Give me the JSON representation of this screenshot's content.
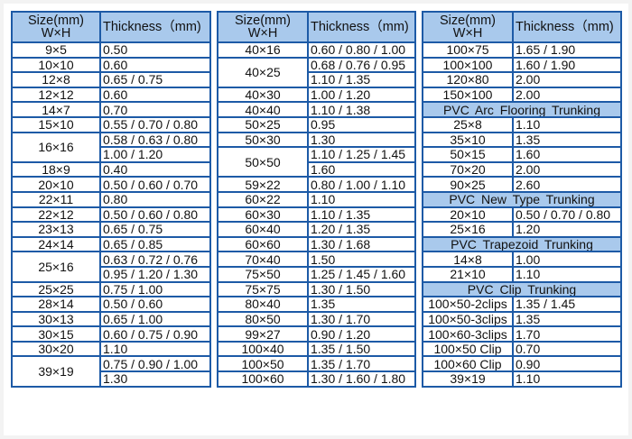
{
  "colors": {
    "border": "#1d5aa6",
    "header_bg": "#a9c9ec"
  },
  "header": {
    "size_line1": "Size(mm)",
    "size_line2": "W×H",
    "thickness": "Thickness（mm)"
  },
  "tables": [
    {
      "blocks": [
        {
          "rows": [
            {
              "size": "9×5",
              "thickness": [
                "0.50"
              ]
            },
            {
              "size": "10×10",
              "thickness": [
                "0.60"
              ]
            },
            {
              "size": "12×8",
              "thickness": [
                "0.65 / 0.75"
              ]
            },
            {
              "size": "12×12",
              "thickness": [
                "0.60"
              ]
            },
            {
              "size": "14×7",
              "thickness": [
                "0.70"
              ]
            },
            {
              "size": "15×10",
              "thickness": [
                "0.55 / 0.70 / 0.80"
              ]
            },
            {
              "size": "16×16",
              "thickness": [
                "0.58 / 0.63 / 0.80",
                "1.00 / 1.20"
              ]
            },
            {
              "size": "18×9",
              "thickness": [
                "0.40"
              ]
            },
            {
              "size": "20×10",
              "thickness": [
                "0.50 / 0.60 / 0.70"
              ]
            },
            {
              "size": "22×11",
              "thickness": [
                "0.80"
              ]
            },
            {
              "size": "22×12",
              "thickness": [
                "0.50 / 0.60 / 0.80"
              ]
            },
            {
              "size": "23×13",
              "thickness": [
                "0.65 / 0.75"
              ]
            },
            {
              "size": "24×14",
              "thickness": [
                "0.65 / 0.85"
              ]
            },
            {
              "size": "25×16",
              "thickness": [
                "0.63 / 0.72 / 0.76",
                "0.95 / 1.20 / 1.30"
              ]
            },
            {
              "size": "25×25",
              "thickness": [
                "0.75 / 1.00"
              ]
            },
            {
              "size": "28×14",
              "thickness": [
                "0.50 / 0.60"
              ]
            },
            {
              "size": "30×13",
              "thickness": [
                "0.65 / 1.00"
              ]
            },
            {
              "size": "30×15",
              "thickness": [
                "0.60 / 0.75 / 0.90"
              ]
            },
            {
              "size": "30×20",
              "thickness": [
                "1.10"
              ]
            },
            {
              "size": "39×19",
              "thickness": [
                "0.75 / 0.90 / 1.00",
                "1.30"
              ]
            }
          ]
        }
      ]
    },
    {
      "blocks": [
        {
          "rows": [
            {
              "size": "40×16",
              "thickness": [
                "0.60 / 0.80 / 1.00"
              ]
            },
            {
              "size": "40×25",
              "thickness": [
                "0.68 / 0.76 / 0.95",
                "1.10 / 1.35"
              ]
            },
            {
              "size": "40×30",
              "thickness": [
                "1.00 / 1.20"
              ]
            },
            {
              "size": "40×40",
              "thickness": [
                "1.10 / 1.38"
              ]
            },
            {
              "size": "50×25",
              "thickness": [
                "0.95"
              ]
            },
            {
              "size": "50×30",
              "thickness": [
                "1.30"
              ]
            },
            {
              "size": "50×50",
              "thickness": [
                "1.10 / 1.25 / 1.45",
                "1.60"
              ]
            },
            {
              "size": "59×22",
              "thickness": [
                "0.80 / 1.00 / 1.10"
              ]
            },
            {
              "size": "60×22",
              "thickness": [
                "1.10"
              ]
            },
            {
              "size": "60×30",
              "thickness": [
                "1.10 / 1.35"
              ]
            },
            {
              "size": "60×40",
              "thickness": [
                "1.20 / 1.35"
              ]
            },
            {
              "size": "60×60",
              "thickness": [
                "1.30 / 1.68"
              ]
            },
            {
              "size": "70×40",
              "thickness": [
                "1.50"
              ]
            },
            {
              "size": "75×50",
              "thickness": [
                "1.25 / 1.45 / 1.60"
              ]
            },
            {
              "size": "75×75",
              "thickness": [
                "1.30 / 1.50"
              ]
            },
            {
              "size": "80×40",
              "thickness": [
                "1.35"
              ]
            },
            {
              "size": "80×50",
              "thickness": [
                "1.30 / 1.70"
              ]
            },
            {
              "size": "99×27",
              "thickness": [
                "0.90 / 1.20"
              ]
            },
            {
              "size": "100×40",
              "thickness": [
                "1.35 / 1.50"
              ]
            },
            {
              "size": "100×50",
              "thickness": [
                "1.35 / 1.70"
              ]
            },
            {
              "size": "100×60",
              "thickness": [
                "1.30 / 1.60 / 1.80"
              ]
            }
          ]
        }
      ]
    },
    {
      "blocks": [
        {
          "rows": [
            {
              "size": "100×75",
              "thickness": [
                "1.65 / 1.90"
              ]
            },
            {
              "size": "100×100",
              "thickness": [
                "1.60 / 1.90"
              ]
            },
            {
              "size": "120×80",
              "thickness": [
                "2.00"
              ]
            },
            {
              "size": "150×100",
              "thickness": [
                "2.00"
              ]
            }
          ]
        },
        {
          "title": "PVC Arc Flooring Trunking",
          "rows": [
            {
              "size": "25×8",
              "thickness": [
                "1.10"
              ]
            },
            {
              "size": "35×10",
              "thickness": [
                "1.35"
              ]
            },
            {
              "size": "50×15",
              "thickness": [
                "1.60"
              ]
            },
            {
              "size": "70×20",
              "thickness": [
                "2.00"
              ]
            },
            {
              "size": "90×25",
              "thickness": [
                "2.60"
              ]
            }
          ]
        },
        {
          "title": "PVC New Type Trunking",
          "rows": [
            {
              "size": "20×10",
              "thickness": [
                "0.50 / 0.70 / 0.80"
              ]
            },
            {
              "size": "25×16",
              "thickness": [
                "1.20"
              ]
            }
          ]
        },
        {
          "title": "PVC Trapezoid Trunking",
          "rows": [
            {
              "size": "14×8",
              "thickness": [
                "1.00"
              ]
            },
            {
              "size": "21×10",
              "thickness": [
                "1.10"
              ]
            }
          ]
        },
        {
          "title": "PVC Clip Trunking",
          "rows": [
            {
              "size": "100×50-2clips",
              "thickness": [
                "1.35 / 1.45"
              ]
            },
            {
              "size": "100×50-3clips",
              "thickness": [
                "1.35"
              ]
            },
            {
              "size": "100×60-3clips",
              "thickness": [
                "1.70"
              ]
            },
            {
              "size": "100×50 Clip",
              "thickness": [
                "0.70"
              ]
            },
            {
              "size": "100×60 Clip",
              "thickness": [
                "0.90"
              ]
            },
            {
              "size": "39×19",
              "thickness": [
                "1.10"
              ]
            }
          ]
        }
      ]
    }
  ]
}
